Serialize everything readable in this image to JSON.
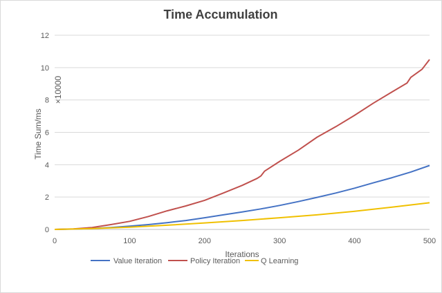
{
  "chart_data": {
    "type": "line",
    "title": "Time Accumulation",
    "xlabel": "Iterations",
    "ylabel": "Time Sum/ms",
    "y_multiplier_label": "×10000",
    "xlim": [
      0,
      500
    ],
    "ylim": [
      0,
      12
    ],
    "x_ticks": [
      "0",
      "100",
      "200",
      "300",
      "400",
      "500"
    ],
    "y_ticks": [
      "0",
      "2",
      "4",
      "6",
      "8",
      "10",
      "12"
    ],
    "grid": "horizontal",
    "legend_position": "bottom",
    "series": [
      {
        "name": "Value Iteration",
        "color": "#4472c4",
        "x": [
          0,
          25,
          50,
          75,
          100,
          125,
          150,
          175,
          200,
          225,
          250,
          275,
          300,
          325,
          350,
          375,
          400,
          425,
          450,
          475,
          500
        ],
        "y": [
          0,
          0.02,
          0.06,
          0.12,
          0.2,
          0.3,
          0.42,
          0.55,
          0.72,
          0.9,
          1.08,
          1.27,
          1.48,
          1.72,
          1.98,
          2.25,
          2.55,
          2.88,
          3.2,
          3.55,
          3.95
        ]
      },
      {
        "name": "Policy Iteration",
        "color": "#c0504d",
        "x": [
          0,
          25,
          50,
          75,
          100,
          125,
          150,
          175,
          200,
          225,
          250,
          270,
          275,
          280,
          300,
          325,
          350,
          375,
          400,
          425,
          450,
          470,
          475,
          490,
          500
        ],
        "y": [
          0,
          0.03,
          0.12,
          0.3,
          0.5,
          0.8,
          1.15,
          1.45,
          1.8,
          2.25,
          2.72,
          3.15,
          3.3,
          3.6,
          4.2,
          4.9,
          5.7,
          6.35,
          7.05,
          7.8,
          8.5,
          9.05,
          9.4,
          9.9,
          10.5
        ]
      },
      {
        "name": "Q Learning",
        "color": "#f0c000",
        "x": [
          0,
          50,
          100,
          150,
          200,
          250,
          300,
          350,
          400,
          450,
          500
        ],
        "y": [
          0,
          0.05,
          0.14,
          0.26,
          0.4,
          0.55,
          0.72,
          0.9,
          1.12,
          1.38,
          1.65
        ]
      }
    ]
  }
}
